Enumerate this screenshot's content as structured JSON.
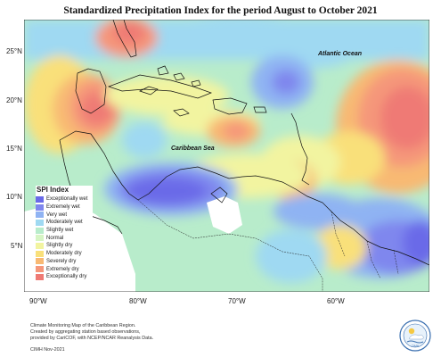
{
  "title": "Standardized Precipitation Index for the period August to October 2021",
  "lat_labels": [
    "25°N",
    "20°N",
    "15°N",
    "10°N",
    "5°N"
  ],
  "lon_labels": [
    "90°W",
    "80°W",
    "70°W",
    "60°W"
  ],
  "place_labels": {
    "atlantic": "Atlantic Ocean",
    "caribbean": "Caribbean Sea"
  },
  "legend": {
    "title": "SPI Index",
    "items": [
      {
        "label": "Exceptionally wet",
        "color": "#6a6ae8"
      },
      {
        "label": "Extremely wet",
        "color": "#7f87ee"
      },
      {
        "label": "Very wet",
        "color": "#8fb3f3"
      },
      {
        "label": "Moderately wet",
        "color": "#9fd9f2"
      },
      {
        "label": "Slightly wet",
        "color": "#b8eccb"
      },
      {
        "label": "Normal",
        "color": "#d6f5c4"
      },
      {
        "label": "Slightly dry",
        "color": "#f2f4a0"
      },
      {
        "label": "Moderately dry",
        "color": "#f9e07a"
      },
      {
        "label": "Severely dry",
        "color": "#f8b973"
      },
      {
        "label": "Extremely dry",
        "color": "#f5977a"
      },
      {
        "label": "Exceptionally dry",
        "color": "#ef7a74"
      }
    ]
  },
  "footer": {
    "line1": "Climate Monitoring Map of the Caribbean Region.",
    "line2": "Created by aggregating station based observations,",
    "line3": "provided by CariCOF, with NCEP/NCAR Reanalysis Data.",
    "credit": "CIMH Nov-2021"
  },
  "logo_text": "CIMH"
}
